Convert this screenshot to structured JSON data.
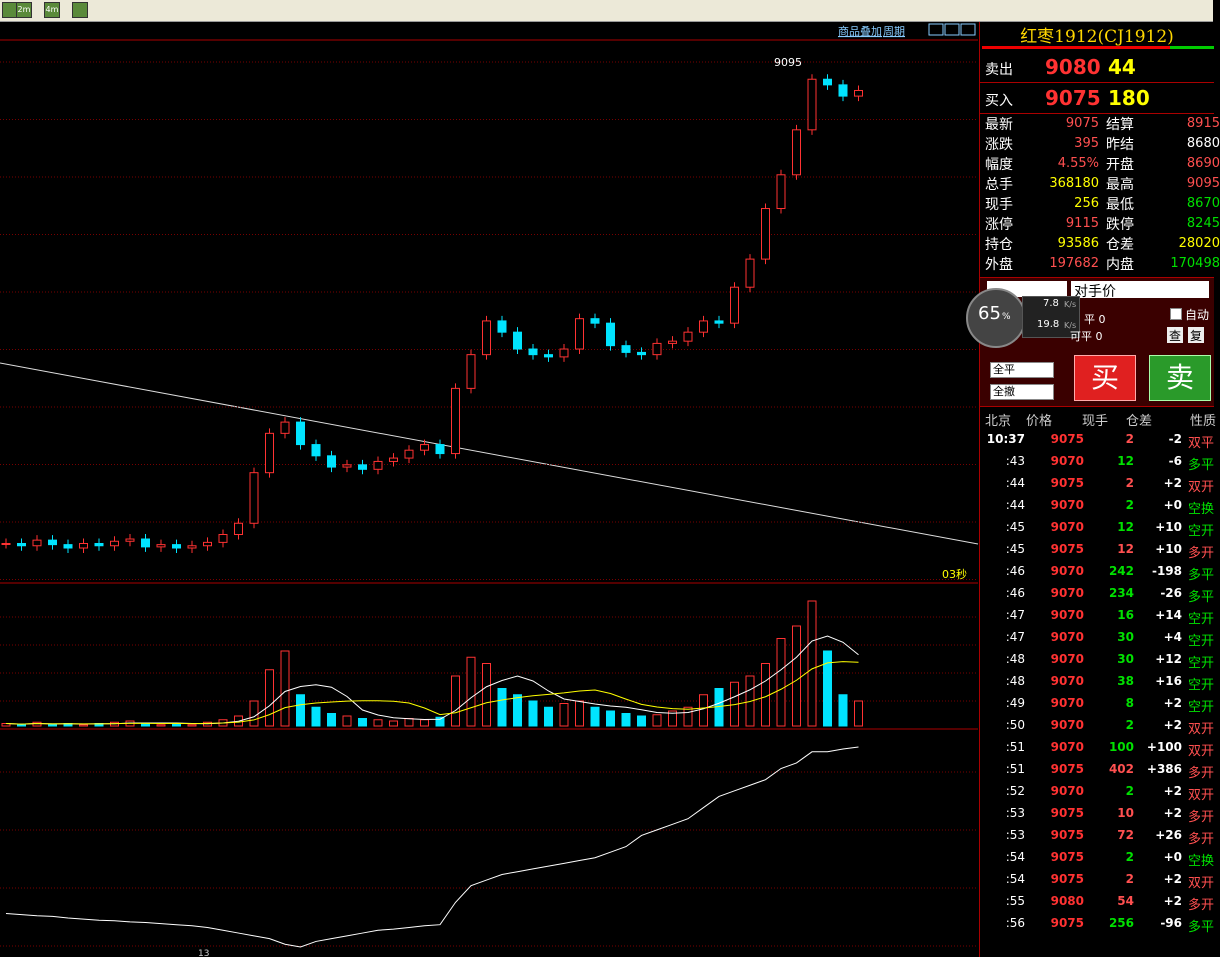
{
  "toolbar": {
    "buttons": [
      "2m",
      "4m"
    ],
    "overlay": "商品叠加",
    "period": "周期"
  },
  "chart_data": {
    "type": "candlestick",
    "high_label": 9095,
    "timer_label": "03秒",
    "x_label": "13",
    "closes": [
      8672,
      8670,
      8675,
      8671,
      8668,
      8672,
      8670,
      8674,
      8676,
      8669,
      8671,
      8668,
      8670,
      8673,
      8680,
      8690,
      8735,
      8770,
      8780,
      8760,
      8750,
      8740,
      8742,
      8738,
      8745,
      8748,
      8755,
      8760,
      8752,
      8810,
      8840,
      8870,
      8860,
      8845,
      8840,
      8838,
      8845,
      8872,
      8868,
      8848,
      8842,
      8840,
      8850,
      8852,
      8860,
      8870,
      8868,
      8900,
      8925,
      8970,
      9000,
      9040,
      9085,
      9080,
      9070,
      9075
    ],
    "volumes": [
      2,
      1,
      3,
      1,
      2,
      1,
      2,
      3,
      4,
      2,
      1,
      2,
      1,
      3,
      5,
      8,
      20,
      45,
      60,
      25,
      15,
      10,
      8,
      6,
      5,
      4,
      6,
      5,
      7,
      40,
      55,
      50,
      30,
      25,
      20,
      15,
      18,
      20,
      15,
      12,
      10,
      8,
      9,
      12,
      15,
      25,
      30,
      35,
      40,
      50,
      70,
      80,
      100,
      60,
      25,
      20
    ],
    "open_interest": [
      90600,
      90580,
      90560,
      90550,
      90520,
      90500,
      90480,
      90470,
      90450,
      90440,
      90420,
      90400,
      90380,
      90350,
      90300,
      90250,
      90200,
      90150,
      90050,
      90000,
      90100,
      90150,
      90200,
      90250,
      90300,
      90320,
      90350,
      90380,
      90400,
      90800,
      91100,
      91200,
      91300,
      91350,
      91400,
      91450,
      91500,
      91550,
      91600,
      91700,
      91800,
      92000,
      92100,
      92200,
      92300,
      92500,
      92700,
      92800,
      92900,
      93000,
      93200,
      93300,
      93500,
      93500,
      93550,
      93586
    ],
    "up_color": "#ff3232",
    "down_color": "#00e4ff"
  },
  "quote": {
    "title": "红枣1912(CJ1912)",
    "ask": {
      "label": "卖出",
      "price": "9080",
      "volume": "44"
    },
    "bid": {
      "label": "买入",
      "price": "9075",
      "volume": "180"
    },
    "stats": [
      [
        {
          "label": "最新",
          "value": "9075",
          "color": "#ff5050"
        },
        {
          "label": "结算",
          "value": "8915",
          "color": "#ff5050"
        }
      ],
      [
        {
          "label": "涨跌",
          "value": "395",
          "color": "#ff5050"
        },
        {
          "label": "昨结",
          "value": "8680",
          "color": "#ffffff"
        }
      ],
      [
        {
          "label": "幅度",
          "value": "4.55%",
          "color": "#ff5050"
        },
        {
          "label": "开盘",
          "value": "8690",
          "color": "#ff5050"
        }
      ],
      [
        {
          "label": "总手",
          "value": "368180",
          "color": "#ffff00"
        },
        {
          "label": "最高",
          "value": "9095",
          "color": "#ff5050"
        }
      ],
      [
        {
          "label": "现手",
          "value": "256",
          "color": "#ffff00"
        },
        {
          "label": "最低",
          "value": "8670",
          "color": "#00e000"
        }
      ],
      [
        {
          "label": "涨停",
          "value": "9115",
          "color": "#ff5050"
        },
        {
          "label": "跌停",
          "value": "8245",
          "color": "#00e000"
        }
      ],
      [
        {
          "label": "持仓",
          "value": "93586",
          "color": "#ffff00"
        },
        {
          "label": "仓差",
          "value": "28020",
          "color": "#ffff00"
        }
      ],
      [
        {
          "label": "外盘",
          "value": "197682",
          "color": "#ff5050"
        },
        {
          "label": "内盘",
          "value": "170498",
          "color": "#00e000"
        }
      ]
    ]
  },
  "order": {
    "price_type": "对手价",
    "up_speed": "7.8",
    "down_speed": "19.8",
    "speed_unit": "K/s",
    "gauge": "65",
    "gauge_unit": "%",
    "close_label": "平 0",
    "closable_label": "可平 0",
    "auto": "自动",
    "query": "查",
    "reset": "复",
    "close_all": "全平",
    "cancel_all": "全撤",
    "buy": "买",
    "sell": "卖"
  },
  "trades": {
    "header": [
      "北京",
      "价格",
      "现手",
      "仓差",
      "性质"
    ],
    "rows": [
      {
        "time": "10:37",
        "price": "9075",
        "hand": "2",
        "change": "-2",
        "nature": "双平",
        "hand_color": "#ff5050",
        "nature_color": "#ff5050"
      },
      {
        "time": ":43",
        "price": "9070",
        "hand": "12",
        "change": "-6",
        "nature": "多平",
        "hand_color": "#00e000",
        "nature_color": "#00e000"
      },
      {
        "time": ":44",
        "price": "9075",
        "hand": "2",
        "change": "+2",
        "nature": "双开",
        "hand_color": "#ff5050",
        "nature_color": "#ff5050"
      },
      {
        "time": ":44",
        "price": "9070",
        "hand": "2",
        "change": "+0",
        "nature": "空换",
        "hand_color": "#00e000",
        "nature_color": "#00e000"
      },
      {
        "time": ":45",
        "price": "9070",
        "hand": "12",
        "change": "+10",
        "nature": "空开",
        "hand_color": "#00e000",
        "nature_color": "#00e000"
      },
      {
        "time": ":45",
        "price": "9075",
        "hand": "12",
        "change": "+10",
        "nature": "多开",
        "hand_color": "#ff5050",
        "nature_color": "#ff5050"
      },
      {
        "time": ":46",
        "price": "9070",
        "hand": "242",
        "change": "-198",
        "nature": "多平",
        "hand_color": "#00e000",
        "nature_color": "#00e000"
      },
      {
        "time": ":46",
        "price": "9070",
        "hand": "234",
        "change": "-26",
        "nature": "多平",
        "hand_color": "#00e000",
        "nature_color": "#00e000"
      },
      {
        "time": ":47",
        "price": "9070",
        "hand": "16",
        "change": "+14",
        "nature": "空开",
        "hand_color": "#00e000",
        "nature_color": "#00e000"
      },
      {
        "time": ":47",
        "price": "9070",
        "hand": "30",
        "change": "+4",
        "nature": "空开",
        "hand_color": "#00e000",
        "nature_color": "#00e000"
      },
      {
        "time": ":48",
        "price": "9070",
        "hand": "30",
        "change": "+12",
        "nature": "空开",
        "hand_color": "#00e000",
        "nature_color": "#00e000"
      },
      {
        "time": ":48",
        "price": "9070",
        "hand": "38",
        "change": "+16",
        "nature": "空开",
        "hand_color": "#00e000",
        "nature_color": "#00e000"
      },
      {
        "time": ":49",
        "price": "9070",
        "hand": "8",
        "change": "+2",
        "nature": "空开",
        "hand_color": "#00e000",
        "nature_color": "#00e000"
      },
      {
        "time": ":50",
        "price": "9070",
        "hand": "2",
        "change": "+2",
        "nature": "双开",
        "hand_color": "#00e000",
        "nature_color": "#ff5050"
      },
      {
        "time": ":51",
        "price": "9070",
        "hand": "100",
        "change": "+100",
        "nature": "双开",
        "hand_color": "#00e000",
        "nature_color": "#ff5050"
      },
      {
        "time": ":51",
        "price": "9075",
        "hand": "402",
        "change": "+386",
        "nature": "多开",
        "hand_color": "#ff5050",
        "nature_color": "#ff5050"
      },
      {
        "time": ":52",
        "price": "9070",
        "hand": "2",
        "change": "+2",
        "nature": "双开",
        "hand_color": "#00e000",
        "nature_color": "#ff5050"
      },
      {
        "time": ":53",
        "price": "9075",
        "hand": "10",
        "change": "+2",
        "nature": "多开",
        "hand_color": "#ff5050",
        "nature_color": "#ff5050"
      },
      {
        "time": ":53",
        "price": "9075",
        "hand": "72",
        "change": "+26",
        "nature": "多开",
        "hand_color": "#ff5050",
        "nature_color": "#ff5050"
      },
      {
        "time": ":54",
        "price": "9075",
        "hand": "2",
        "change": "+0",
        "nature": "空换",
        "hand_color": "#00e000",
        "nature_color": "#00e000"
      },
      {
        "time": ":54",
        "price": "9075",
        "hand": "2",
        "change": "+2",
        "nature": "双开",
        "hand_color": "#ff5050",
        "nature_color": "#ff5050"
      },
      {
        "time": ":55",
        "price": "9080",
        "hand": "54",
        "change": "+2",
        "nature": "多开",
        "hand_color": "#ff5050",
        "nature_color": "#ff5050"
      },
      {
        "time": ":56",
        "price": "9075",
        "hand": "256",
        "change": "-96",
        "nature": "多平",
        "hand_color": "#00e000",
        "nature_color": "#00e000"
      }
    ]
  }
}
